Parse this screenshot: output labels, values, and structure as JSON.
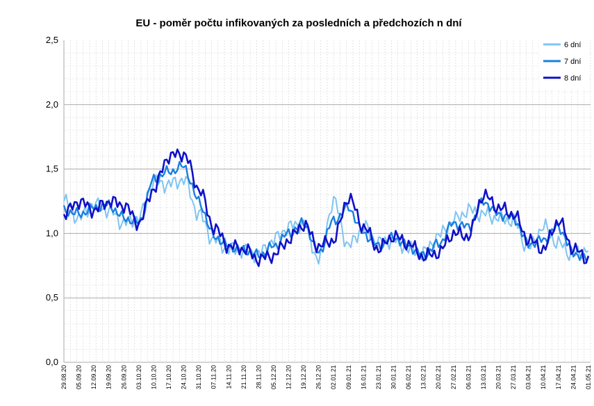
{
  "chart_data": {
    "type": "line",
    "title": "EU - poměr počtu infikovaných za posledních a předchozích n dní",
    "xlabel": "",
    "ylabel": "",
    "ylim": [
      0,
      2.5
    ],
    "yticks": [
      "0,0",
      "0,5",
      "1,0",
      "1,5",
      "2,0",
      "2,5"
    ],
    "x_start": "2020-08-29",
    "x_end": "2021-05-02",
    "xtick_labels": [
      "29.08.20",
      "05.09.20",
      "12.09.20",
      "19.09.20",
      "26.09.20",
      "03.10.20",
      "10.10.20",
      "17.10.20",
      "24.10.20",
      "31.10.20",
      "07.11.20",
      "14.11.20",
      "21.11.20",
      "28.11.20",
      "05.12.20",
      "12.12.20",
      "19.12.20",
      "26.12.20",
      "02.01.21",
      "09.01.21",
      "16.01.21",
      "23.01.21",
      "30.01.21",
      "06.02.21",
      "13.02.21",
      "20.02.21",
      "27.02.21",
      "06.03.21",
      "13.03.21",
      "20.03.21",
      "27.03.21",
      "03.04.21",
      "10.04.21",
      "17.04.21",
      "24.04.21",
      "01.05.21"
    ],
    "grid": true,
    "legend_position": "top-right",
    "colors": {
      "6 dní": "#7fc4f0",
      "7 dní": "#1a7fe0",
      "8 dní": "#1010c8"
    },
    "series": [
      {
        "name": "6 dní",
        "x": [
          "2020-08-29",
          "2020-09-05",
          "2020-09-12",
          "2020-09-19",
          "2020-09-26",
          "2020-10-03",
          "2020-10-10",
          "2020-10-17",
          "2020-10-24",
          "2020-10-31",
          "2020-11-07",
          "2020-11-14",
          "2020-11-21",
          "2020-11-28",
          "2020-12-05",
          "2020-12-12",
          "2020-12-19",
          "2020-12-26",
          "2021-01-02",
          "2021-01-09",
          "2021-01-16",
          "2021-01-23",
          "2021-01-30",
          "2021-02-06",
          "2021-02-13",
          "2021-02-20",
          "2021-02-27",
          "2021-03-06",
          "2021-03-13",
          "2021-03-20",
          "2021-03-27",
          "2021-04-03",
          "2021-04-10",
          "2021-04-17",
          "2021-04-24",
          "2021-05-01"
        ],
        "values": [
          1.25,
          1.12,
          1.22,
          1.18,
          1.08,
          1.12,
          1.4,
          1.38,
          1.42,
          1.15,
          0.95,
          0.88,
          0.87,
          0.84,
          0.95,
          1.05,
          1.08,
          0.8,
          1.25,
          0.9,
          1.05,
          0.93,
          0.95,
          0.88,
          0.85,
          0.98,
          1.1,
          1.18,
          1.15,
          1.12,
          1.1,
          0.88,
          1.05,
          0.92,
          0.83,
          0.88
        ]
      },
      {
        "name": "7 dní",
        "x": [
          "2020-08-29",
          "2020-09-05",
          "2020-09-12",
          "2020-09-19",
          "2020-09-26",
          "2020-10-03",
          "2020-10-10",
          "2020-10-17",
          "2020-10-24",
          "2020-10-31",
          "2020-11-07",
          "2020-11-14",
          "2020-11-21",
          "2020-11-28",
          "2020-12-05",
          "2020-12-12",
          "2020-12-19",
          "2020-12-26",
          "2021-01-02",
          "2021-01-09",
          "2021-01-16",
          "2021-01-23",
          "2021-01-30",
          "2021-02-06",
          "2021-02-13",
          "2021-02-20",
          "2021-02-27",
          "2021-03-06",
          "2021-03-13",
          "2021-03-20",
          "2021-03-27",
          "2021-04-03",
          "2021-04-10",
          "2021-04-17",
          "2021-04-24",
          "2021-05-01"
        ],
        "values": [
          1.18,
          1.15,
          1.2,
          1.22,
          1.12,
          1.08,
          1.42,
          1.48,
          1.52,
          1.25,
          0.98,
          0.9,
          0.87,
          0.83,
          0.9,
          1.0,
          1.08,
          0.85,
          1.1,
          1.2,
          1.0,
          0.9,
          0.97,
          0.9,
          0.83,
          0.92,
          1.08,
          1.05,
          1.25,
          1.15,
          1.12,
          0.92,
          0.95,
          1.05,
          0.85,
          0.8
        ]
      },
      {
        "name": "8 dní",
        "x": [
          "2020-08-29",
          "2020-09-05",
          "2020-09-12",
          "2020-09-19",
          "2020-09-26",
          "2020-10-03",
          "2020-10-10",
          "2020-10-17",
          "2020-10-24",
          "2020-10-31",
          "2020-11-07",
          "2020-11-14",
          "2020-11-21",
          "2020-11-28",
          "2020-12-05",
          "2020-12-12",
          "2020-12-19",
          "2020-12-26",
          "2021-01-02",
          "2021-01-09",
          "2021-01-16",
          "2021-01-23",
          "2021-01-30",
          "2021-02-06",
          "2021-02-13",
          "2021-02-20",
          "2021-02-27",
          "2021-03-06",
          "2021-03-13",
          "2021-03-20",
          "2021-03-27",
          "2021-04-03",
          "2021-04-10",
          "2021-04-17",
          "2021-04-24",
          "2021-05-01"
        ],
        "values": [
          1.15,
          1.25,
          1.18,
          1.25,
          1.22,
          1.08,
          1.35,
          1.6,
          1.62,
          1.35,
          1.05,
          0.9,
          0.88,
          0.8,
          0.83,
          0.95,
          1.07,
          0.9,
          0.95,
          1.28,
          1.05,
          0.88,
          0.98,
          0.92,
          0.82,
          0.85,
          1.0,
          0.98,
          1.3,
          1.2,
          1.15,
          0.95,
          0.88,
          1.1,
          0.88,
          0.8
        ]
      }
    ]
  }
}
